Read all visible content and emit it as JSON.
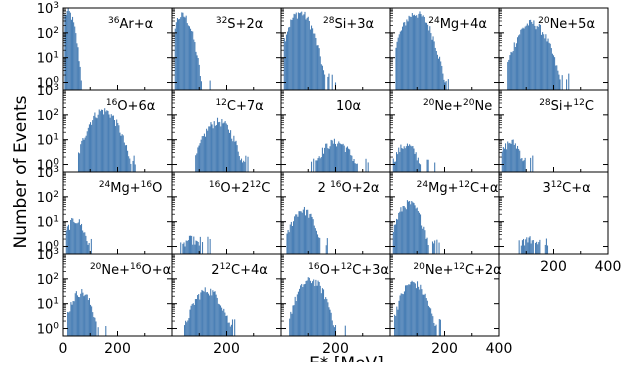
{
  "figure": {
    "ylabel": "Number of Events",
    "xlabel": "E* [MeV]",
    "bar_color": "#4a7fb5",
    "axis_color": "#000000",
    "layout": "4 rows × 5 columns of small-multiple histograms sharing x and y axes; last panel of row 4 empty"
  },
  "chart_data": {
    "type": "bar",
    "subtype": "histogram",
    "xlim": [
      0,
      400
    ],
    "ylim": [
      0.5,
      1000
    ],
    "yscale": "log",
    "xticks": [
      {
        "value": 0,
        "label": "0"
      },
      {
        "value": 200,
        "label": "200"
      },
      {
        "value": 400,
        "label": "400"
      }
    ],
    "yticks": [
      {
        "value": 1,
        "label": "10^0",
        "base": "10",
        "exp": "0"
      },
      {
        "value": 10,
        "label": "10^1",
        "base": "10",
        "exp": "1"
      },
      {
        "value": 100,
        "label": "10^2",
        "base": "10",
        "exp": "2"
      },
      {
        "value": 1000,
        "label": "10^3",
        "base": "10",
        "exp": "3"
      }
    ],
    "panels": [
      {
        "title": [
          {
            "t": "36",
            "sup": true
          },
          {
            "t": "Ar+α"
          }
        ],
        "label": "36Ar+α",
        "peak_x": 18,
        "peak_count": 700,
        "width": 14,
        "min_x": 5,
        "max_x": 75
      },
      {
        "title": [
          {
            "t": "32",
            "sup": true
          },
          {
            "t": "S+2α"
          }
        ],
        "label": "32S+2α",
        "peak_x": 38,
        "peak_count": 500,
        "width": 20,
        "min_x": 10,
        "max_x": 140
      },
      {
        "title": [
          {
            "t": "28",
            "sup": true
          },
          {
            "t": "Si+3α"
          }
        ],
        "label": "28Si+3α",
        "peak_x": 70,
        "peak_count": 650,
        "width": 26,
        "min_x": 10,
        "max_x": 200
      },
      {
        "title": [
          {
            "t": "24",
            "sup": true
          },
          {
            "t": "Mg+4α"
          }
        ],
        "label": "24Mg+4α",
        "peak_x": 95,
        "peak_count": 600,
        "width": 30,
        "min_x": 20,
        "max_x": 230
      },
      {
        "title": [
          {
            "t": "20",
            "sup": true
          },
          {
            "t": "Ne+5α"
          }
        ],
        "label": "20Ne+5α",
        "peak_x": 120,
        "peak_count": 250,
        "width": 32,
        "min_x": 30,
        "max_x": 260
      },
      {
        "title": [
          {
            "t": "16",
            "sup": true
          },
          {
            "t": "O+6α"
          }
        ],
        "label": "16O+6α",
        "peak_x": 148,
        "peak_count": 150,
        "width": 32,
        "min_x": 55,
        "max_x": 270
      },
      {
        "title": [
          {
            "t": "12",
            "sup": true
          },
          {
            "t": "C+7α"
          }
        ],
        "label": "12C+7α",
        "peak_x": 170,
        "peak_count": 55,
        "width": 32,
        "min_x": 85,
        "max_x": 285
      },
      {
        "title": [
          {
            "t": "10α"
          }
        ],
        "label": "10α",
        "peak_x": 200,
        "peak_count": 8,
        "width": 38,
        "min_x": 110,
        "max_x": 320
      },
      {
        "title": [
          {
            "t": "20",
            "sup": true
          },
          {
            "t": "Ne+"
          },
          {
            "t": "20",
            "sup": true
          },
          {
            "t": "Ne"
          }
        ],
        "label": "20Ne+20Ne",
        "peak_x": 60,
        "peak_count": 6,
        "width": 28,
        "min_x": 10,
        "max_x": 170
      },
      {
        "title": [
          {
            "t": "28",
            "sup": true
          },
          {
            "t": "Si+"
          },
          {
            "t": "12",
            "sup": true
          },
          {
            "t": "C"
          }
        ],
        "label": "28Si+12C",
        "peak_x": 45,
        "peak_count": 8,
        "width": 24,
        "min_x": 10,
        "max_x": 130
      },
      {
        "title": [
          {
            "t": "24",
            "sup": true
          },
          {
            "t": "Mg+"
          },
          {
            "t": "16",
            "sup": true
          },
          {
            "t": "O"
          }
        ],
        "label": "24Mg+16O",
        "peak_x": 45,
        "peak_count": 12,
        "width": 22,
        "min_x": 10,
        "max_x": 110
      },
      {
        "title": [
          {
            "t": "16",
            "sup": true
          },
          {
            "t": "O+2"
          },
          {
            "t": "12",
            "sup": true
          },
          {
            "t": "C"
          }
        ],
        "label": "16O+212C",
        "peak_x": 70,
        "peak_count": 2,
        "width": 25,
        "min_x": 30,
        "max_x": 140
      },
      {
        "title": [
          {
            "t": "2 "
          },
          {
            "t": "16",
            "sup": true
          },
          {
            "t": "O+2α"
          }
        ],
        "label": "2 16O+2α",
        "peak_x": 80,
        "peak_count": 30,
        "width": 26,
        "min_x": 20,
        "max_x": 170
      },
      {
        "title": [
          {
            "t": "24",
            "sup": true
          },
          {
            "t": "Mg+"
          },
          {
            "t": "12",
            "sup": true
          },
          {
            "t": "C+α"
          }
        ],
        "label": "24Mg+12C+α",
        "peak_x": 70,
        "peak_count": 55,
        "width": 26,
        "min_x": 10,
        "max_x": 180
      },
      {
        "title": [
          {
            "t": "3"
          },
          {
            "t": "12",
            "sup": true
          },
          {
            "t": "C+α"
          }
        ],
        "label": "312C+α",
        "peak_x": 110,
        "peak_count": 2,
        "width": 28,
        "min_x": 60,
        "max_x": 190
      },
      {
        "title": [
          {
            "t": "20",
            "sup": true
          },
          {
            "t": "Ne+"
          },
          {
            "t": "16",
            "sup": true
          },
          {
            "t": "O+α"
          }
        ],
        "label": "20Ne+16O+α",
        "peak_x": 65,
        "peak_count": 30,
        "width": 24,
        "min_x": 15,
        "max_x": 160
      },
      {
        "title": [
          {
            "t": "2"
          },
          {
            "t": "12",
            "sup": true
          },
          {
            "t": "C+4α"
          }
        ],
        "label": "212C+4α",
        "peak_x": 130,
        "peak_count": 35,
        "width": 32,
        "min_x": 40,
        "max_x": 260
      },
      {
        "title": [
          {
            "t": "16",
            "sup": true
          },
          {
            "t": "O+"
          },
          {
            "t": "12",
            "sup": true
          },
          {
            "t": "C+3α"
          }
        ],
        "label": "16O+12C+3α",
        "peak_x": 110,
        "peak_count": 90,
        "width": 30,
        "min_x": 30,
        "max_x": 240
      },
      {
        "title": [
          {
            "t": "20",
            "sup": true
          },
          {
            "t": "Ne+"
          },
          {
            "t": "12",
            "sup": true
          },
          {
            "t": "C+2α"
          }
        ],
        "label": "20Ne+12C+2α",
        "peak_x": 85,
        "peak_count": 70,
        "width": 28,
        "min_x": 15,
        "max_x": 210
      }
    ]
  }
}
